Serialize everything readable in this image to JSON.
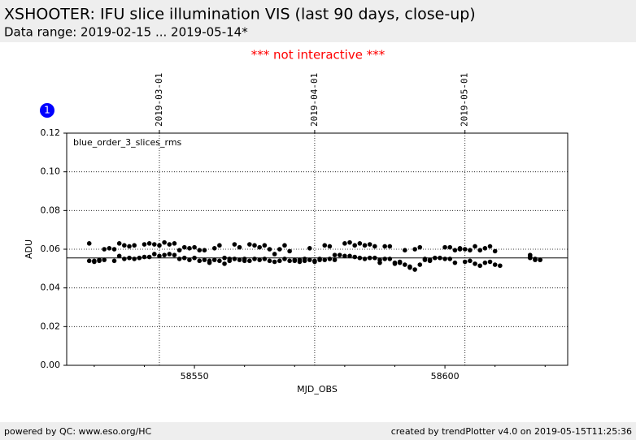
{
  "header": {
    "title": "XSHOOTER: IFU slice illumination VIS (last 90 days, close-up)",
    "subtitle": "Data range: 2019-02-15 ... 2019-05-14*"
  },
  "notice": "*** not interactive ***",
  "badge": "1",
  "footer": {
    "left": "powered by QC: www.eso.org/HC",
    "right": "created by trendPlotter v4.0 on 2019-05-15T11:25:36"
  },
  "chart_data": {
    "type": "scatter",
    "x_label": "MJD_OBS",
    "y_label": "ADU",
    "xlim": [
      58524.5,
      58624.5
    ],
    "ylim": [
      0,
      0.12
    ],
    "xticks": [
      58550,
      58600
    ],
    "xminorticks": [
      58530,
      58540,
      58560,
      58570,
      58580,
      58590,
      58610,
      58620
    ],
    "yticks": [
      {
        "value": 0,
        "label": "0.00"
      },
      {
        "value": 0.02,
        "label": "0.02"
      },
      {
        "value": 0.04,
        "label": "0.04"
      },
      {
        "value": 0.06,
        "label": "0.06"
      },
      {
        "value": 0.08,
        "label": "0.08"
      },
      {
        "value": 0.1,
        "label": "0.10"
      },
      {
        "value": 0.12,
        "label": "0.12"
      }
    ],
    "x2ticks": [
      {
        "value": 58543,
        "label": "2019-03-01"
      },
      {
        "value": 58574,
        "label": "2019-04-01"
      },
      {
        "value": 58604,
        "label": "2019-05-01"
      }
    ],
    "grid": true,
    "reference_line": 0.0555,
    "x": [
      58529,
      58529,
      58530,
      58530,
      58531,
      58531,
      58532,
      58532,
      58533,
      58534,
      58534,
      58535,
      58535,
      58536,
      58536,
      58537,
      58537,
      58538,
      58538,
      58539,
      58540,
      58540,
      58541,
      58541,
      58542,
      58542,
      58543,
      58543,
      58544,
      58544,
      58545,
      58545,
      58546,
      58546,
      58547,
      58547,
      58548,
      58548,
      58549,
      58549,
      58550,
      58550,
      58551,
      58551,
      58552,
      58552,
      58553,
      58553,
      58554,
      58554,
      58555,
      58555,
      58556,
      58556,
      58557,
      58557,
      58558,
      58558,
      58559,
      58559,
      58560,
      58560,
      58561,
      58561,
      58562,
      58562,
      58563,
      58563,
      58564,
      58564,
      58565,
      58565,
      58566,
      58566,
      58567,
      58567,
      58568,
      58568,
      58569,
      58569,
      58570,
      58570,
      58571,
      58571,
      58572,
      58572,
      58573,
      58573,
      58574,
      58574,
      58575,
      58575,
      58576,
      58576,
      58577,
      58577,
      58578,
      58578,
      58579,
      58580,
      58580,
      58581,
      58581,
      58582,
      58582,
      58583,
      58583,
      58584,
      58584,
      58585,
      58585,
      58586,
      58586,
      58587,
      58587,
      58588,
      58588,
      58589,
      58589,
      58590,
      58590,
      58591,
      58591,
      58592,
      58592,
      58593,
      58593,
      58594,
      58594,
      58595,
      58595,
      58596,
      58596,
      58597,
      58597,
      58598,
      58599,
      58600,
      58600,
      58601,
      58601,
      58602,
      58602,
      58603,
      58603,
      58604,
      58604,
      58605,
      58605,
      58606,
      58606,
      58607,
      58607,
      58608,
      58608,
      58609,
      58609,
      58610,
      58610,
      58611,
      58617,
      58617,
      58617,
      58618,
      58618,
      58619,
      58619
    ],
    "series": [
      {
        "name": "blue_order_3_slices_rms",
        "color": "#000000",
        "values": [
          0.063,
          0.054,
          0.0535,
          0.054,
          0.054,
          0.0545,
          0.06,
          0.0545,
          0.0605,
          0.06,
          0.054,
          0.0565,
          0.063,
          0.055,
          0.062,
          0.0555,
          0.0615,
          0.055,
          0.062,
          0.0555,
          0.0625,
          0.056,
          0.063,
          0.056,
          0.0575,
          0.0625,
          0.0565,
          0.062,
          0.0635,
          0.057,
          0.0625,
          0.0575,
          0.063,
          0.057,
          0.0595,
          0.055,
          0.061,
          0.0555,
          0.0605,
          0.0545,
          0.061,
          0.0555,
          0.0595,
          0.054,
          0.0595,
          0.0545,
          0.053,
          0.054,
          0.0605,
          0.0545,
          0.062,
          0.054,
          0.0525,
          0.0555,
          0.055,
          0.054,
          0.0625,
          0.055,
          0.061,
          0.0545,
          0.054,
          0.055,
          0.0625,
          0.054,
          0.062,
          0.055,
          0.061,
          0.0545,
          0.062,
          0.055,
          0.06,
          0.054,
          0.0575,
          0.0535,
          0.06,
          0.054,
          0.062,
          0.055,
          0.059,
          0.054,
          0.0545,
          0.054,
          0.0545,
          0.0535,
          0.054,
          0.055,
          0.0605,
          0.0545,
          0.054,
          0.0535,
          0.0545,
          0.055,
          0.062,
          0.0545,
          0.0615,
          0.055,
          0.057,
          0.0545,
          0.057,
          0.063,
          0.0565,
          0.0635,
          0.0565,
          0.062,
          0.056,
          0.063,
          0.0555,
          0.062,
          0.055,
          0.0625,
          0.0555,
          0.0615,
          0.0555,
          0.053,
          0.0545,
          0.0615,
          0.055,
          0.0615,
          0.055,
          0.053,
          0.0525,
          0.0535,
          0.053,
          0.0595,
          0.052,
          0.051,
          0.0505,
          0.06,
          0.0495,
          0.061,
          0.052,
          0.0545,
          0.055,
          0.054,
          0.0545,
          0.0555,
          0.0555,
          0.061,
          0.055,
          0.061,
          0.055,
          0.0595,
          0.053,
          0.0605,
          0.06,
          0.0535,
          0.06,
          0.054,
          0.0595,
          0.0615,
          0.0525,
          0.0595,
          0.0515,
          0.0605,
          0.053,
          0.0615,
          0.0535,
          0.059,
          0.052,
          0.0515,
          0.0555,
          0.056,
          0.057,
          0.055,
          0.0545,
          0.0545,
          0.0545
        ]
      }
    ]
  }
}
